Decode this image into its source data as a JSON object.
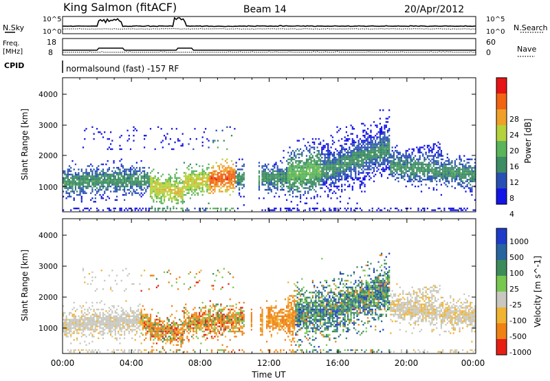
{
  "header": {
    "site": "King Salmon (fitACF)",
    "beam": "Beam 14",
    "date": "20/Apr/2012"
  },
  "noise_panel": {
    "left_label": "N.Sky",
    "right_label": "N.Search",
    "left_ticks": [
      "10^5",
      "10^0"
    ],
    "right_ticks": [
      "10^5",
      "10^0"
    ]
  },
  "freq_panel": {
    "left_label_1": "Freq.",
    "left_label_2": "[MHz]",
    "right_label": "Nave",
    "left_ticks": [
      "18",
      "8"
    ],
    "right_ticks": [
      "60",
      "0"
    ]
  },
  "cpid_panel": {
    "label": "CPID",
    "text": "normalsound (fast) -157 RF"
  },
  "chart_data": [
    {
      "type": "heatmap",
      "panel": "power",
      "ylabel": "Slant Range [km]",
      "yticks": [
        "1000",
        "2000",
        "3000",
        "4000"
      ],
      "ylim": [
        180,
        4500
      ],
      "colorbar_label": "Power [dB]",
      "colorbar_ticks": [
        "4",
        "8",
        "12",
        "16",
        "20",
        "24",
        "28"
      ],
      "colors": [
        "#1414e6",
        "#2850b4",
        "#3c8c64",
        "#5ab45a",
        "#b4d23c",
        "#f0a028",
        "#f06414",
        "#e61414"
      ],
      "grid": false
    },
    {
      "type": "heatmap",
      "panel": "velocity",
      "ylabel": "Slant Range [km]",
      "yticks": [
        "1000",
        "2000",
        "3000",
        "4000"
      ],
      "ylim": [
        180,
        4500
      ],
      "colorbar_label": "Velocity [m s^-1]",
      "colorbar_ticks": [
        "1000",
        "500",
        "100",
        "25",
        "-25",
        "-100",
        "-500",
        "-1000"
      ],
      "colors": [
        "#1e3cc8",
        "#2864a0",
        "#3c8c5a",
        "#78c850",
        "#c8c8c0",
        "#f0b432",
        "#f08214",
        "#e61e14"
      ],
      "grid": false
    }
  ],
  "time_axis": {
    "ticks": [
      "00:00",
      "04:00",
      "08:00",
      "12:00",
      "16:00",
      "20:00",
      "00:00"
    ],
    "label": "Time UT"
  }
}
